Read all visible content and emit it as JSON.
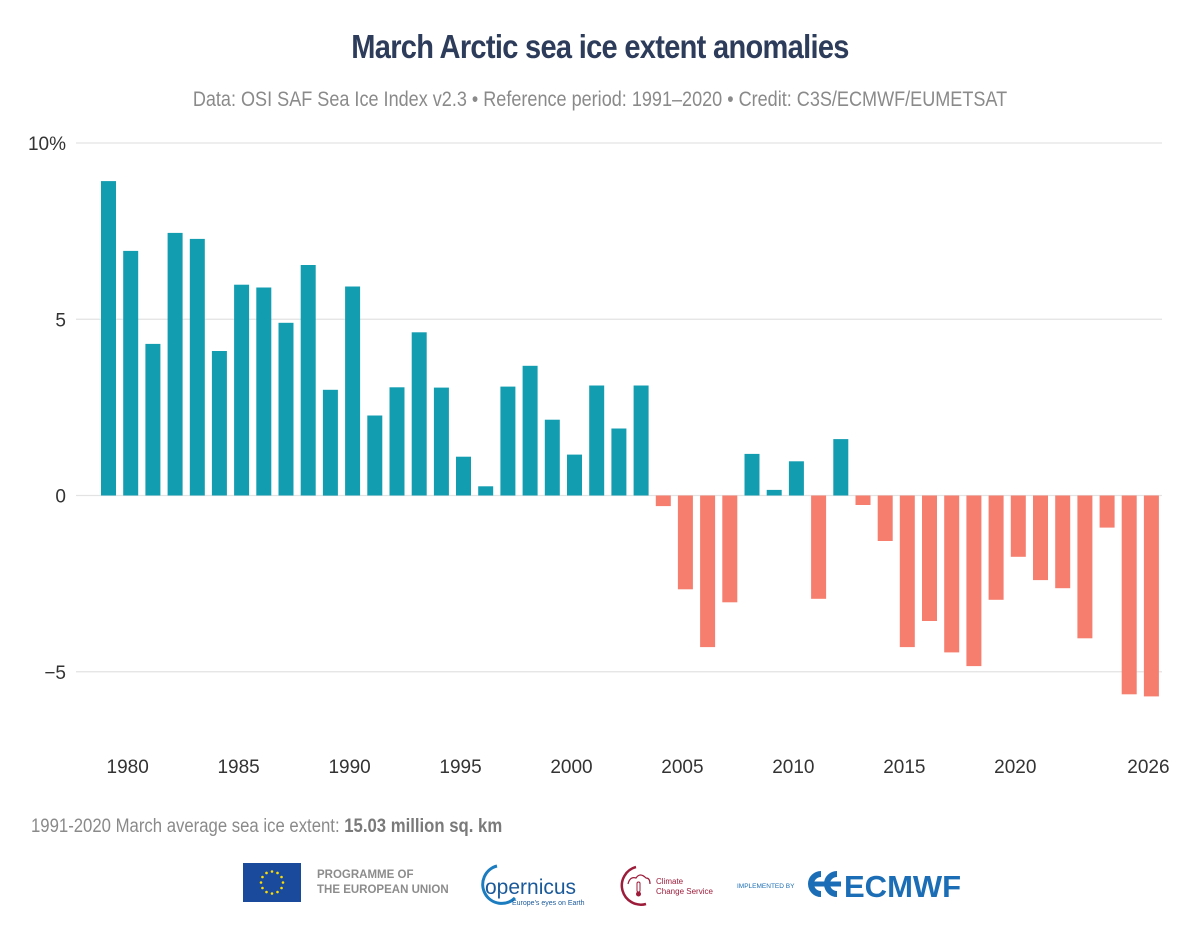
{
  "header": {
    "title": "March Arctic sea ice extent anomalies",
    "subtitle": "Data: OSI SAF Sea Ice Index v2.3 • Reference period: 1991–2020 • Credit: C3S/ECMWF/EUMETSAT"
  },
  "footer": {
    "note_prefix": "1991-2020 March average sea ice extent: ",
    "note_value": "15.03 million sq. km",
    "logos": {
      "eu_line1": "PROGRAMME OF",
      "eu_line2": "THE EUROPEAN UNION",
      "copernicus": "opernicus",
      "copernicus_tagline": "Europe's eyes on Earth",
      "c3s_line1": "Climate",
      "c3s_line2": "Change Service",
      "implemented_by": "IMPLEMENTED BY",
      "ecmwf": "ECMWF"
    }
  },
  "colors": {
    "positive": "#139db0",
    "negative": "#f67e6e",
    "title": "#2d3c5a",
    "grid": "#e3e3e3"
  },
  "chart_data": {
    "type": "bar",
    "title": "March Arctic sea ice extent anomalies",
    "subtitle": "Data: OSI SAF Sea Ice Index v2.3 • Reference period: 1991–2020 • Credit: C3S/ECMWF/EUMETSAT",
    "xlabel": "",
    "ylabel": "",
    "ylim": [
      -7,
      10
    ],
    "yticks": [
      10,
      5,
      0,
      -5
    ],
    "ytick_labels": [
      "10%",
      "5",
      "0",
      "−5"
    ],
    "xticks": [
      1980,
      1985,
      1990,
      1995,
      2000,
      2005,
      2010,
      2015,
      2020,
      2026
    ],
    "xtick_labels": [
      "1980",
      "1985",
      "1990",
      "1995",
      "2000",
      "2005",
      "2010",
      "2015",
      "2020",
      "2026"
    ],
    "grid": true,
    "legend": "none",
    "categories": [
      1979,
      1980,
      1981,
      1982,
      1983,
      1984,
      1985,
      1986,
      1987,
      1988,
      1989,
      1990,
      1991,
      1992,
      1993,
      1994,
      1995,
      1996,
      1997,
      1998,
      1999,
      2000,
      2001,
      2002,
      2003,
      2004,
      2005,
      2006,
      2007,
      2008,
      2009,
      2010,
      2011,
      2012,
      2013,
      2014,
      2015,
      2016,
      2017,
      2018,
      2019,
      2020,
      2021,
      2022,
      2023,
      2024,
      2025,
      2026
    ],
    "values": [
      8.92,
      6.94,
      4.3,
      7.45,
      7.28,
      4.1,
      5.98,
      5.9,
      4.9,
      6.54,
      3.0,
      5.93,
      2.27,
      3.07,
      4.63,
      3.06,
      1.1,
      0.26,
      3.09,
      3.68,
      2.15,
      1.16,
      3.12,
      1.9,
      3.12,
      -0.3,
      -2.66,
      -4.3,
      -3.03,
      1.18,
      0.16,
      0.97,
      -2.93,
      1.6,
      -0.27,
      -1.29,
      -4.3,
      -3.56,
      -4.45,
      -4.84,
      -2.96,
      -1.74,
      -2.4,
      -2.63,
      -4.05,
      -0.91,
      -5.64,
      -5.7
    ],
    "units": "%",
    "annotation": "1991-2020 March average sea ice extent: 15.03 million sq. km"
  }
}
